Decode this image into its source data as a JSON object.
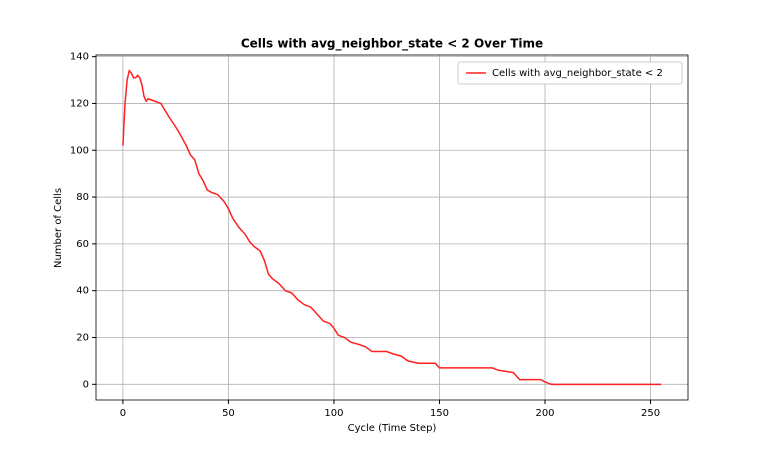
{
  "chart_data": {
    "type": "line",
    "title": "Cells with avg_neighbor_state < 2 Over Time",
    "xlabel": "Cycle (Time Step)",
    "ylabel": "Number of Cells",
    "x": [
      0,
      1,
      2,
      3,
      4,
      5,
      6,
      7,
      8,
      9,
      10,
      11,
      12,
      15,
      18,
      20,
      22,
      25,
      27,
      30,
      32,
      34,
      36,
      38,
      40,
      42,
      45,
      48,
      50,
      52,
      55,
      58,
      60,
      62,
      65,
      67,
      69,
      71,
      74,
      77,
      80,
      83,
      86,
      89,
      92,
      95,
      98,
      100,
      102,
      105,
      108,
      112,
      115,
      118,
      125,
      128,
      132,
      135,
      140,
      148,
      150,
      175,
      178,
      185,
      188,
      198,
      200,
      203,
      255
    ],
    "series": [
      {
        "name": "Cells with avg_neighbor_state < 2",
        "color": "#ff2020",
        "values": [
          102,
          120,
          130,
          134,
          133,
          131,
          131,
          132,
          131,
          128,
          123,
          121,
          122,
          121,
          120,
          117,
          114,
          110,
          107,
          102,
          98,
          96,
          90,
          87,
          83,
          82,
          81,
          78,
          75,
          71,
          67,
          64,
          61,
          59,
          57,
          53,
          47,
          45,
          43,
          40,
          39,
          36,
          34,
          33,
          30,
          27,
          26,
          24,
          21,
          20,
          18,
          17,
          16,
          14,
          14,
          13,
          12,
          10,
          9,
          9,
          7,
          7,
          6,
          5,
          2,
          2,
          1,
          0,
          0
        ]
      }
    ],
    "xlim": [
      -12.75,
      267.75
    ],
    "xticks": [
      0,
      50,
      100,
      150,
      200,
      250
    ],
    "ylim": [
      -6.7,
      140.7
    ],
    "yticks": [
      0,
      20,
      40,
      60,
      80,
      100,
      120,
      140
    ],
    "grid": true,
    "legend": "upper right"
  }
}
